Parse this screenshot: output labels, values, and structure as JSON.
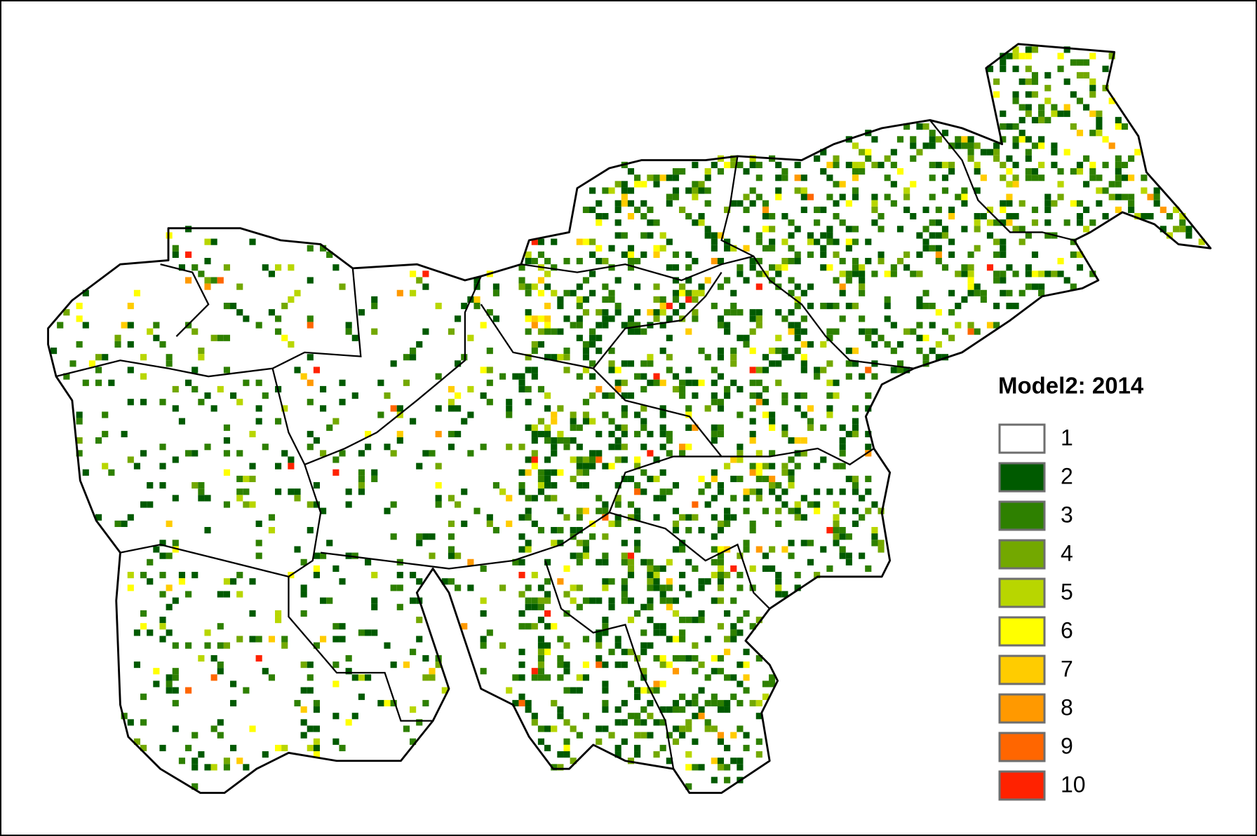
{
  "legend": {
    "title": "Model2: 2014",
    "items": [
      {
        "label": "1",
        "color": "#ffffff"
      },
      {
        "label": "2",
        "color": "#005a00"
      },
      {
        "label": "3",
        "color": "#2e8000"
      },
      {
        "label": "4",
        "color": "#73a800"
      },
      {
        "label": "5",
        "color": "#b8d600"
      },
      {
        "label": "6",
        "color": "#ffff00"
      },
      {
        "label": "7",
        "color": "#ffcc00"
      },
      {
        "label": "8",
        "color": "#ff9900"
      },
      {
        "label": "9",
        "color": "#ff6600"
      },
      {
        "label": "10",
        "color": "#ff2200"
      }
    ]
  }
}
